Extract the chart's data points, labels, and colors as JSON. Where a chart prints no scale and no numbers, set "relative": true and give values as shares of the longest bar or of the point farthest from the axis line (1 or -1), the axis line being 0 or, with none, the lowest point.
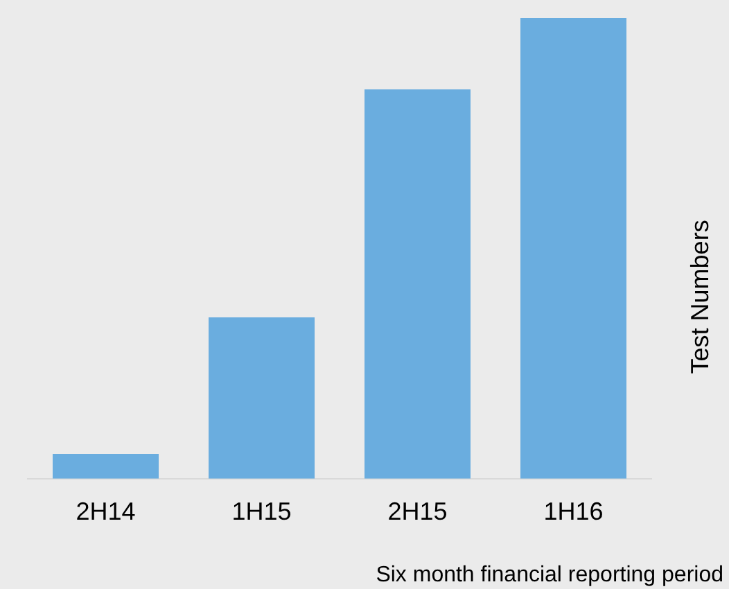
{
  "chart_data": {
    "type": "bar",
    "xlabel": "Six month financial reporting period",
    "ylabel": "Test Numbers",
    "categories": [
      "2H14",
      "1H15",
      "2H15",
      "1H16"
    ],
    "values": [
      0.054,
      0.35,
      0.845,
      1
    ],
    "color": "#6aaddf",
    "relative": true,
    "grid": false,
    "legend": false
  }
}
